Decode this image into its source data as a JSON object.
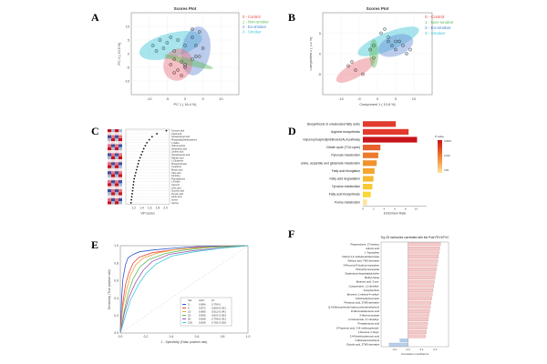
{
  "panels": {
    "A": {
      "label": "A",
      "chart_data": {
        "type": "scatter",
        "title": "Scores Plot",
        "xlabel": "PC 1 ( 16.4 %)",
        "ylabel": "PC 2 ( 10.5 %)",
        "xlim": [
          -15,
          15
        ],
        "ylim": [
          -15,
          15
        ],
        "xticks": [
          -10,
          -5,
          0,
          5,
          10
        ],
        "yticks": [
          -10,
          -5,
          0,
          5,
          10
        ],
        "legend": [
          {
            "id": "0",
            "name": "Control",
            "color": "#e8473f"
          },
          {
            "id": "1",
            "name": "Non-smoker",
            "color": "#5dbb5a"
          },
          {
            "id": "2",
            "name": "Ex-smoker",
            "color": "#3f7fcc"
          },
          {
            "id": "3",
            "name": "Smoker",
            "color": "#3ec6d6"
          }
        ],
        "ellipses": [
          {
            "group": "3",
            "cx": -4,
            "cy": 3,
            "rx": 9,
            "ry": 4.5,
            "angle": -15,
            "color": "#3ec6d6"
          },
          {
            "group": "2",
            "cx": 3,
            "cy": 1,
            "rx": 4,
            "ry": 9,
            "angle": 10,
            "color": "#6a8fd8"
          },
          {
            "group": "0",
            "cx": -2,
            "cy": -4,
            "rx": 4,
            "ry": 6,
            "angle": 20,
            "color": "#e8737f"
          },
          {
            "group": "1",
            "cx": 1,
            "cy": -3,
            "rx": 7,
            "ry": 1.2,
            "angle": 15,
            "color": "#5dbb5a"
          }
        ],
        "points": [
          {
            "x": -9,
            "y": 3,
            "g": "3"
          },
          {
            "x": -7,
            "y": 5,
            "g": "3"
          },
          {
            "x": -6,
            "y": 2,
            "g": "3"
          },
          {
            "x": -5,
            "y": 4,
            "g": "3"
          },
          {
            "x": -4,
            "y": 6,
            "g": "3"
          },
          {
            "x": -3,
            "y": 1,
            "g": "3"
          },
          {
            "x": -8,
            "y": 1,
            "g": "3"
          },
          {
            "x": -2,
            "y": 5,
            "g": "3"
          },
          {
            "x": 0,
            "y": 3,
            "g": "3"
          },
          {
            "x": 2,
            "y": 6,
            "g": "2"
          },
          {
            "x": 3,
            "y": 3,
            "g": "2"
          },
          {
            "x": 4,
            "y": 8,
            "g": "2"
          },
          {
            "x": 3,
            "y": -1,
            "g": "2"
          },
          {
            "x": 5,
            "y": 2,
            "g": "2"
          },
          {
            "x": 2,
            "y": 9,
            "g": "2"
          },
          {
            "x": -3,
            "y": -2,
            "g": "0"
          },
          {
            "x": -2,
            "y": -6,
            "g": "0"
          },
          {
            "x": -4,
            "y": -4,
            "g": "0"
          },
          {
            "x": 0,
            "y": -5,
            "g": "0"
          },
          {
            "x": -1,
            "y": -8,
            "g": "0"
          },
          {
            "x": -3,
            "y": -7,
            "g": "0"
          },
          {
            "x": -1,
            "y": -3,
            "g": "1"
          },
          {
            "x": 2,
            "y": -2,
            "g": "1"
          },
          {
            "x": 4,
            "y": -1,
            "g": "1"
          },
          {
            "x": 0,
            "y": -4,
            "g": "1"
          }
        ]
      }
    },
    "B": {
      "label": "B",
      "chart_data": {
        "type": "scatter",
        "title": "Scores Plot",
        "xlabel": "Component 1 ( 10.8 %)",
        "ylabel": "Component 2 ( 4.2 %)",
        "xlim": [
          -15,
          15
        ],
        "ylim": [
          -10,
          10
        ],
        "xticks": [
          -10,
          -5,
          0,
          5,
          10
        ],
        "yticks": [
          -5,
          0,
          5
        ],
        "legend": [
          {
            "id": "0",
            "name": "Control",
            "color": "#e8473f"
          },
          {
            "id": "1",
            "name": "Non-smoker",
            "color": "#5dbb5a"
          },
          {
            "id": "2",
            "name": "Ex-smoker",
            "color": "#3f7fcc"
          },
          {
            "id": "3",
            "name": "Smoker",
            "color": "#3ec6d6"
          }
        ],
        "ellipses": [
          {
            "group": "3",
            "cx": 3,
            "cy": 3,
            "rx": 9,
            "ry": 2.2,
            "angle": -22,
            "color": "#3ec6d6"
          },
          {
            "group": "2",
            "cx": 5,
            "cy": 2,
            "rx": 5,
            "ry": 2.5,
            "angle": -20,
            "color": "#6a8fd8"
          },
          {
            "group": "0",
            "cx": -6,
            "cy": -4,
            "rx": 6,
            "ry": 1.8,
            "angle": -30,
            "color": "#e8737f"
          },
          {
            "group": "1",
            "cx": -1,
            "cy": 0,
            "rx": 1.2,
            "ry": 3.5,
            "angle": 0,
            "color": "#5dbb5a"
          }
        ],
        "points": [
          {
            "x": 1,
            "y": 5,
            "g": "3"
          },
          {
            "x": 3,
            "y": 4,
            "g": "3"
          },
          {
            "x": 5,
            "y": 3,
            "g": "3"
          },
          {
            "x": 7,
            "y": 2,
            "g": "3"
          },
          {
            "x": 9,
            "y": 1,
            "g": "3"
          },
          {
            "x": 2,
            "y": 6,
            "g": "3"
          },
          {
            "x": 4,
            "y": 2,
            "g": "2"
          },
          {
            "x": 6,
            "y": 3,
            "g": "2"
          },
          {
            "x": 8,
            "y": 0,
            "g": "2"
          },
          {
            "x": 5,
            "y": 1,
            "g": "2"
          },
          {
            "x": 3,
            "y": 3,
            "g": "2"
          },
          {
            "x": -8,
            "y": -3,
            "g": "0"
          },
          {
            "x": -6,
            "y": -4,
            "g": "0"
          },
          {
            "x": -4,
            "y": -5,
            "g": "0"
          },
          {
            "x": -7,
            "y": -2,
            "g": "0"
          },
          {
            "x": -1,
            "y": 2,
            "g": "1"
          },
          {
            "x": -1,
            "y": -1,
            "g": "1"
          },
          {
            "x": -2,
            "y": 1,
            "g": "1"
          }
        ]
      }
    },
    "C": {
      "label": "C",
      "chart_data": {
        "type": "scatter",
        "title": "",
        "xlabel": "VIP scores",
        "ylabel": "",
        "xlim": [
          1.0,
          2.1
        ],
        "xticks": [
          1.2,
          1.4,
          1.6,
          1.8,
          2.0
        ],
        "items": [
          {
            "label": "Tyrosine acid",
            "vip": 2.02
          },
          {
            "label": "Uracil acid",
            "vip": 1.78
          },
          {
            "label": "Tetradecanoyl acid",
            "vip": 1.66
          },
          {
            "label": "Phosphatidylethanolamine",
            "vip": 1.59
          },
          {
            "label": "L-Valine",
            "vip": 1.53
          },
          {
            "label": "Hydroxyindole",
            "vip": 1.49
          },
          {
            "label": "Stearidonic acid",
            "vip": 1.45
          },
          {
            "label": "Linoleic acid",
            "vip": 1.42
          },
          {
            "label": "Hexadecanoic acid",
            "vip": 1.39
          },
          {
            "label": "Palmitic acid",
            "vip": 1.36
          },
          {
            "label": "L-Glutamine",
            "vip": 1.33
          },
          {
            "label": "Phosphocholine",
            "vip": 1.31
          },
          {
            "label": "Creatinine",
            "vip": 1.29
          },
          {
            "label": "Butyric acid",
            "vip": 1.27
          },
          {
            "label": "Oleic acid",
            "vip": 1.25
          },
          {
            "label": "Ornithine",
            "vip": 1.23
          },
          {
            "label": "Phenylalanine",
            "vip": 1.21
          },
          {
            "label": "L-Proline",
            "vip": 1.2
          },
          {
            "label": "Glycerol",
            "vip": 1.19
          },
          {
            "label": "Citric acid",
            "vip": 1.18
          },
          {
            "label": "Succinic acid",
            "vip": 1.17
          },
          {
            "label": "Pyruvic acid",
            "vip": 1.16
          },
          {
            "label": "Lactic acid",
            "vip": 1.15
          },
          {
            "label": "Serine",
            "vip": 1.14
          },
          {
            "label": "Glycine",
            "vip": 1.13
          }
        ],
        "heatmap_rows": 25,
        "heatmap_cols": 4
      }
    },
    "D": {
      "label": "D",
      "chart_data": {
        "type": "bar",
        "title": "",
        "xlabel": "Enrichment Ratio",
        "ylabel": "",
        "xlim": [
          0,
          12
        ],
        "xticks": [
          0,
          2,
          4,
          6,
          8,
          10
        ],
        "categories": [
          "Biosynthesis of unsaturated fatty acids",
          "Arginine biosynthesis",
          "Glycerophospholipid/linoleic/ALA pathway",
          "Citrate cycle (TCA cycle)",
          "Pyruvate metabolism",
          "Alanine, aspartate and glutamate metabolism",
          "Fatty acid elongation",
          "Fatty acid degradation",
          "Tyrosine metabolism",
          "Fatty acid biosynthesis",
          "Purine metabolism"
        ],
        "values": [
          6.2,
          8.6,
          10.2,
          3.3,
          2.9,
          2.6,
          2.2,
          2.0,
          1.8,
          1.5,
          0.8
        ],
        "colors": [
          "#e23a2e",
          "#e23a2e",
          "#c8141c",
          "#e8602c",
          "#ec7a2c",
          "#f0922e",
          "#f4a62f",
          "#f7b932",
          "#f9c934",
          "#fbd736",
          "#fde59a"
        ],
        "legend_title": "P value",
        "legend_ticks": [
          "0.0015",
          "0.010",
          "0.05"
        ]
      }
    },
    "E": {
      "label": "E",
      "chart_data": {
        "type": "line",
        "title": "",
        "xlabel": "1 - Specificity (False positive rate)",
        "ylabel": "Sensitivity (True positive rate)",
        "xlim": [
          0,
          1
        ],
        "ylim": [
          0,
          1
        ],
        "xticks": [
          0.0,
          0.2,
          0.4,
          0.6,
          0.8,
          1.0
        ],
        "yticks": [
          0.0,
          0.2,
          0.4,
          0.6,
          0.8,
          1.0
        ],
        "legend_header": [
          "Var.",
          "AUC",
          "CI"
        ],
        "series": [
          {
            "name": "3",
            "auc": "0.884",
            "ci": "0.799-1",
            "color": "#2e55c9",
            "x": [
              0,
              0.01,
              0.02,
              0.04,
              0.06,
              0.1,
              0.15,
              0.25,
              0.4,
              0.6,
              1
            ],
            "y": [
              0,
              0.4,
              0.62,
              0.78,
              0.86,
              0.9,
              0.93,
              0.95,
              0.97,
              0.99,
              1
            ]
          },
          {
            "name": "5",
            "auc": "0.872",
            "ci": "0.804-0.931",
            "color": "#e8473f",
            "x": [
              0,
              0.02,
              0.04,
              0.07,
              0.1,
              0.15,
              0.25,
              0.4,
              0.6,
              1
            ],
            "y": [
              0,
              0.35,
              0.55,
              0.7,
              0.8,
              0.87,
              0.92,
              0.95,
              0.98,
              1
            ]
          },
          {
            "name": "10",
            "auc": "0.886",
            "ci": "0.812-0.941",
            "color": "#e8a23f",
            "x": [
              0,
              0.02,
              0.05,
              0.08,
              0.12,
              0.18,
              0.3,
              0.45,
              0.65,
              1
            ],
            "y": [
              0,
              0.3,
              0.5,
              0.66,
              0.78,
              0.86,
              0.92,
              0.96,
              0.98,
              1
            ]
          },
          {
            "name": "20",
            "auc": "0.895",
            "ci": "0.821-0.953",
            "color": "#5dbb5a",
            "x": [
              0,
              0.03,
              0.06,
              0.1,
              0.15,
              0.22,
              0.35,
              0.5,
              0.7,
              1
            ],
            "y": [
              0,
              0.25,
              0.45,
              0.62,
              0.75,
              0.84,
              0.91,
              0.95,
              0.98,
              1
            ]
          },
          {
            "name": "50",
            "auc": "0.868",
            "ci": "0.794-0.931",
            "color": "#9b59b6",
            "x": [
              0,
              0.03,
              0.07,
              0.12,
              0.18,
              0.25,
              0.38,
              0.55,
              0.75,
              1
            ],
            "y": [
              0,
              0.22,
              0.42,
              0.58,
              0.72,
              0.82,
              0.9,
              0.94,
              0.97,
              1
            ]
          },
          {
            "name": "100",
            "auc": "0.858",
            "ci": "0.781-0.926",
            "color": "#3ec6d6",
            "x": [
              0,
              0.04,
              0.08,
              0.14,
              0.2,
              0.28,
              0.4,
              0.58,
              0.78,
              1
            ],
            "y": [
              0,
              0.2,
              0.38,
              0.55,
              0.68,
              0.79,
              0.88,
              0.93,
              0.97,
              1
            ]
          }
        ]
      }
    },
    "F": {
      "label": "F",
      "chart_data": {
        "type": "bar",
        "title": "Top 25 molecules correlated with the Post FEV1/FVC",
        "xlabel": "Correlation coefficients",
        "ylabel": "",
        "xlim": [
          -0.4,
          0.6
        ],
        "xticks": [
          -0.2,
          0.0,
          0.2,
          0.4
        ],
        "categories": [
          "Pregnenolone, 17-hydroxy",
          "Adrenic acid",
          "L-Tryptophan",
          "Diethyl 4,4-methylenebisbenzoate",
          "Sebacic acid, TMS derivative",
          "N-Pyruvoyl-5-hydroxy-tryptophan",
          "Phenethyl isocyanate",
          "Dipalmitoyl phosphatidylcholine",
          "Methyl oleate",
          "Butanoic acid, 3-oxo-",
          "Cyclopentane, 1,2-dimethyl-",
          "Acetylcarnitine",
          "Benzene, 1-ethenyl-4-methyl-",
          "6,8-Dimethylcoumarin",
          "Pentanoic acid, 2TMS derivative",
          "(2,4-Difluorophenyl)-hydroxy-phenylmethanone",
          "12-Bromododecanoic acid",
          "3-Hexenyl acetate",
          "2-Octenamide, 3,7-dimethyl-",
          "Pentadecanoic acid",
          "2-Propenoic acid, 3-(4-methoxyphenyl)-",
          "1-Decanol, 2-hexyl-",
          "3,4-Dimethoxybenzoic acid",
          "2-Methylaminoethanol",
          "Glycolic acid, 2TMS derivative"
        ],
        "values": [
          0.48,
          0.47,
          0.46,
          0.45,
          0.44,
          0.43,
          0.42,
          0.41,
          0.4,
          0.39,
          0.38,
          0.37,
          0.36,
          0.35,
          0.34,
          0.33,
          0.32,
          0.31,
          0.3,
          0.29,
          0.28,
          0.27,
          0.26,
          -0.12,
          -0.28
        ],
        "colors": {
          "positive": "#f5c9c9",
          "negative": "#b9cfe8"
        }
      }
    }
  }
}
